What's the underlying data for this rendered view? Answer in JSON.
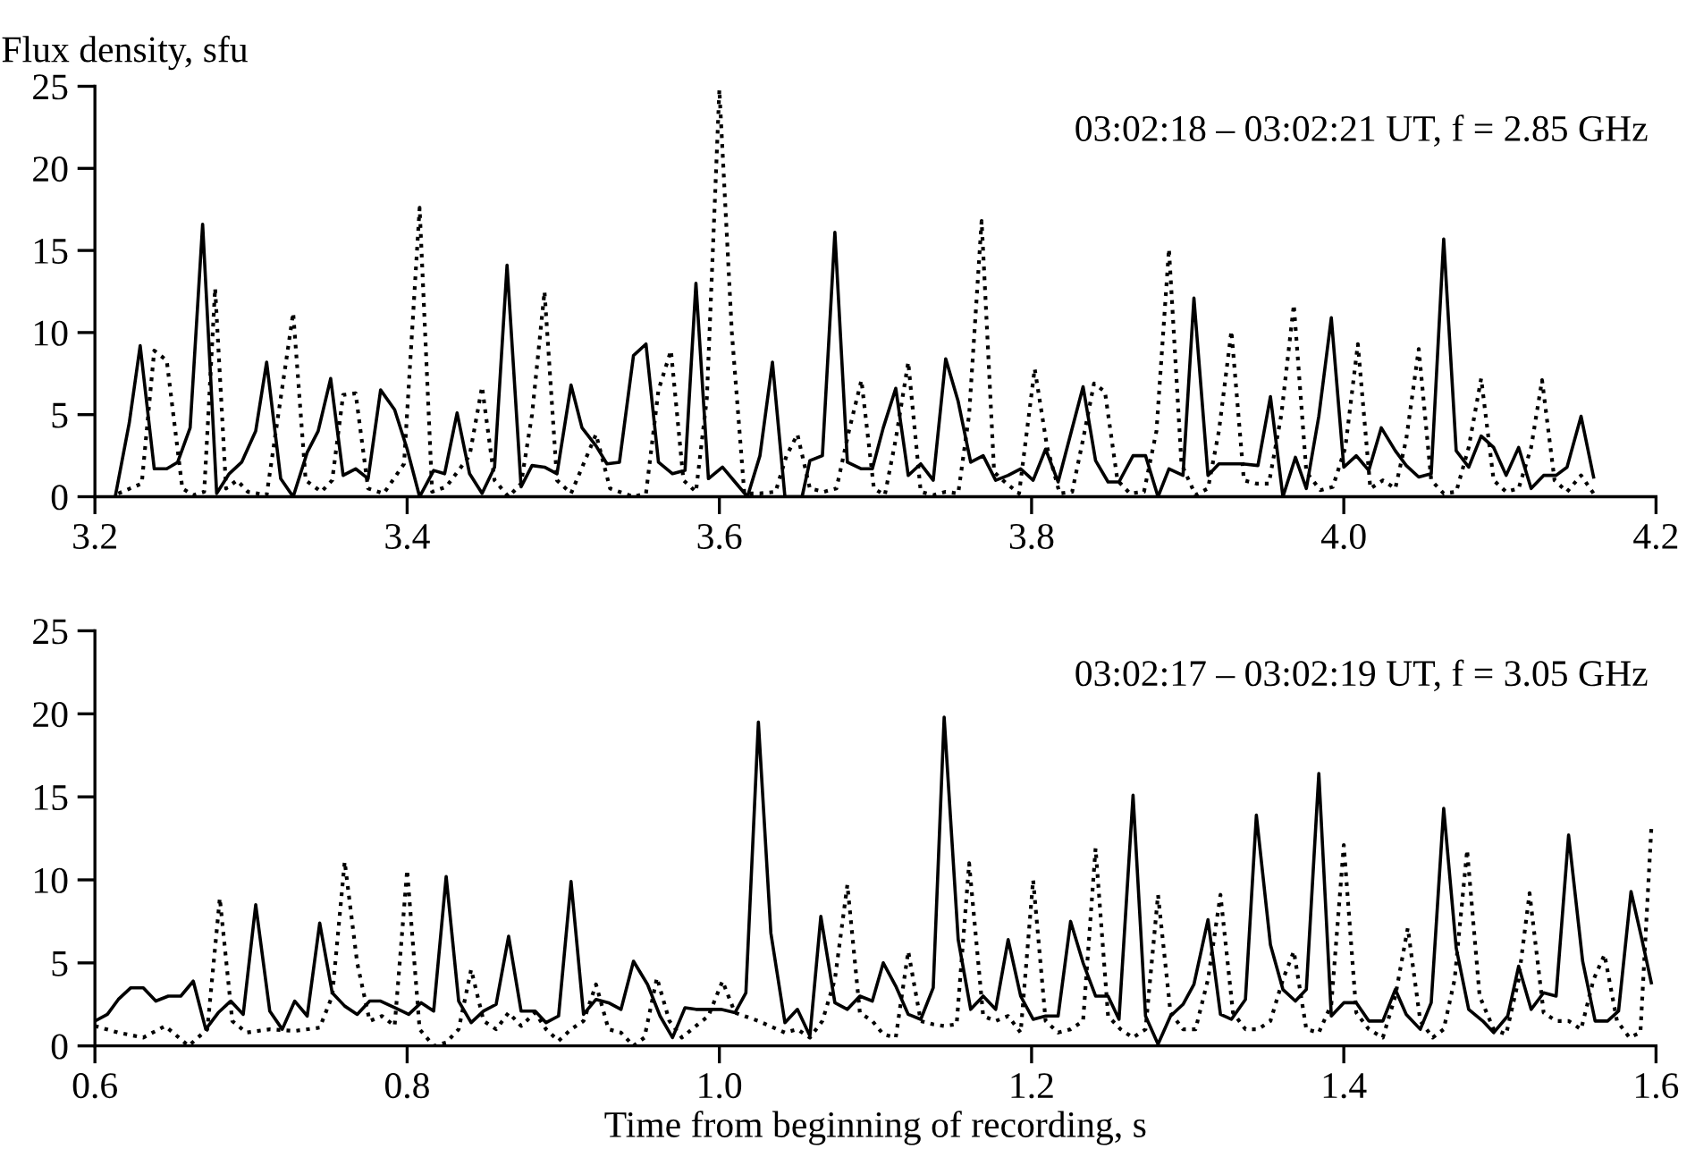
{
  "chart_data": [
    {
      "type": "line",
      "ylabel": "Flux density, sfu",
      "annotations": [
        "03:02:18 – 03:02:21 UT, f = 2.85 GHz"
      ],
      "xlim": [
        3.2,
        4.2
      ],
      "xticks": [
        3.2,
        3.4,
        3.6,
        3.8,
        {
          "value": 4,
          "label": "4.0"
        },
        4.2
      ],
      "ylim": [
        0,
        25
      ],
      "yticks": [
        0,
        5,
        10,
        15,
        20,
        25
      ],
      "grid": false,
      "series": [
        {
          "color": "#000000",
          "line_style": "solid",
          "x": [
            3.213,
            3.222,
            3.229,
            3.238,
            3.246,
            3.253,
            3.261,
            3.269,
            3.278,
            3.286,
            3.294,
            3.303,
            3.31,
            3.319,
            3.327,
            3.336,
            3.343,
            3.351,
            3.359,
            3.367,
            3.375,
            3.383,
            3.392,
            3.4,
            3.408,
            3.417,
            3.424,
            3.432,
            3.44,
            3.448,
            3.456,
            3.464,
            3.473,
            3.48,
            3.488,
            3.496,
            3.505,
            3.512,
            3.521,
            3.528,
            3.536,
            3.545,
            3.553,
            3.561,
            3.57,
            3.578,
            3.585,
            3.593,
            3.602,
            3.61,
            3.618,
            3.626,
            3.634,
            3.642,
            3.653,
            3.658,
            3.666,
            3.674,
            3.682,
            3.691,
            3.698,
            3.705,
            3.713,
            3.721,
            3.729,
            3.737,
            3.745,
            3.753,
            3.761,
            3.769,
            3.777,
            3.785,
            3.793,
            3.801,
            3.809,
            3.817,
            3.833,
            3.841,
            3.849,
            3.856,
            3.865,
            3.873,
            3.881,
            3.888,
            3.897,
            3.904,
            3.913,
            3.92,
            3.935,
            3.945,
            3.953,
            3.961,
            3.969,
            3.976,
            3.984,
            3.992,
            4.0,
            4.008,
            4.016,
            4.024,
            4.033,
            4.04,
            4.048,
            4.056,
            4.064,
            4.072,
            4.08,
            4.088,
            4.096,
            4.104,
            4.112,
            4.12,
            4.128,
            4.136,
            4.143,
            4.152,
            4.16
          ],
          "values": [
            0.0,
            4.5,
            9.2,
            1.7,
            1.7,
            2.1,
            4.2,
            16.6,
            0.2,
            1.4,
            2.1,
            4.0,
            8.2,
            1.1,
            0.0,
            2.7,
            4.0,
            7.2,
            1.3,
            1.7,
            1.1,
            6.5,
            5.3,
            2.9,
            0.0,
            1.6,
            1.4,
            5.1,
            1.4,
            0.2,
            1.8,
            14.1,
            0.6,
            1.9,
            1.8,
            1.4,
            6.8,
            4.2,
            3.1,
            2.0,
            2.1,
            8.6,
            9.3,
            2.1,
            1.4,
            1.6,
            13.0,
            1.1,
            1.8,
            0.9,
            0.0,
            2.5,
            8.2,
            0.0,
            0.0,
            2.2,
            2.5,
            16.1,
            2.1,
            1.7,
            1.7,
            4.2,
            6.6,
            1.3,
            2.0,
            1.0,
            8.4,
            5.8,
            2.1,
            2.5,
            1.0,
            1.3,
            1.7,
            1.0,
            2.9,
            0.9,
            6.7,
            2.2,
            0.9,
            0.9,
            2.5,
            2.5,
            0.0,
            1.7,
            1.3,
            12.1,
            1.3,
            2.0,
            2.0,
            1.9,
            6.1,
            0.0,
            2.4,
            0.5,
            4.9,
            10.9,
            1.8,
            2.5,
            1.6,
            4.2,
            2.8,
            1.9,
            1.2,
            1.4,
            15.7,
            2.8,
            1.8,
            3.7,
            3.0,
            1.3,
            3.0,
            0.5,
            1.3,
            1.3,
            1.8,
            4.9,
            1.2
          ]
        },
        {
          "color": "#000000",
          "line_style": "dotted",
          "x": [
            3.215,
            3.23,
            3.238,
            3.246,
            3.256,
            3.263,
            3.27,
            3.277,
            3.284,
            3.291,
            3.298,
            3.31,
            3.319,
            3.327,
            3.335,
            3.345,
            3.352,
            3.359,
            3.367,
            3.375,
            3.385,
            3.398,
            3.408,
            3.416,
            3.425,
            3.44,
            3.448,
            3.456,
            3.465,
            3.473,
            3.48,
            3.488,
            3.496,
            3.505,
            3.513,
            3.521,
            3.53,
            3.545,
            3.553,
            3.561,
            3.569,
            3.577,
            3.585,
            3.592,
            3.6,
            3.608,
            3.616,
            3.626,
            3.636,
            3.643,
            3.65,
            3.658,
            3.667,
            3.675,
            3.683,
            3.691,
            3.699,
            3.706,
            3.713,
            3.721,
            3.729,
            3.737,
            3.745,
            3.753,
            3.76,
            3.768,
            3.776,
            3.784,
            3.792,
            3.802,
            3.81,
            3.818,
            3.826,
            3.833,
            3.84,
            3.847,
            3.855,
            3.863,
            3.872,
            3.88,
            3.888,
            3.896,
            3.905,
            3.913,
            3.92,
            3.928,
            3.936,
            3.944,
            3.952,
            3.96,
            3.968,
            3.976,
            3.985,
            3.993,
            4.001,
            4.009,
            4.017,
            4.025,
            4.033,
            4.04,
            4.048,
            4.056,
            4.064,
            4.072,
            4.08,
            4.088,
            4.096,
            4.104,
            4.112,
            4.12,
            4.127,
            4.135,
            4.143,
            4.152,
            4.16
          ],
          "values": [
            0.2,
            0.8,
            8.9,
            8.3,
            0.5,
            0.1,
            0.3,
            12.7,
            0.5,
            1.0,
            0.3,
            0.1,
            6.0,
            11.2,
            1.0,
            0.3,
            1.0,
            6.2,
            6.3,
            0.5,
            0.2,
            2.0,
            17.6,
            0.3,
            0.6,
            2.5,
            6.7,
            1.0,
            0.0,
            0.8,
            5.0,
            12.5,
            1.0,
            0.2,
            2.0,
            3.8,
            0.5,
            0.0,
            0.2,
            6.5,
            8.9,
            1.0,
            0.3,
            6.0,
            24.8,
            10.0,
            0.2,
            0.2,
            0.3,
            2.5,
            3.8,
            0.5,
            0.3,
            0.5,
            4.0,
            7.1,
            0.5,
            0.1,
            3.5,
            8.2,
            0.3,
            0.1,
            0.3,
            0.2,
            5.0,
            16.8,
            1.5,
            0.8,
            0.2,
            7.8,
            3.0,
            0.2,
            0.3,
            3.5,
            6.9,
            6.4,
            1.0,
            0.2,
            0.3,
            4.0,
            15.1,
            2.0,
            0.1,
            0.5,
            4.0,
            10.1,
            1.0,
            0.8,
            0.8,
            5.0,
            11.7,
            1.5,
            0.4,
            0.6,
            3.0,
            9.3,
            0.5,
            1.0,
            0.5,
            3.5,
            9.0,
            1.0,
            0.2,
            0.3,
            3.0,
            7.2,
            1.0,
            0.3,
            0.5,
            3.0,
            7.1,
            1.0,
            0.3,
            1.3,
            0.2
          ]
        }
      ]
    },
    {
      "type": "line",
      "xlabel": "Time from beginning of recording, s",
      "annotations": [
        "03:02:17 – 03:02:19 UT, f = 3.05 GHz"
      ],
      "xlim": [
        0.6,
        1.6
      ],
      "xticks": [
        0.6,
        0.8,
        {
          "value": 1,
          "label": "1.0"
        },
        1.2,
        1.4,
        1.6
      ],
      "ylim": [
        0,
        25
      ],
      "yticks": [
        0,
        5,
        10,
        15,
        20,
        25
      ],
      "grid": false,
      "series": [
        {
          "color": "#000000",
          "line_style": "solid",
          "x": [
            0.6,
            0.608,
            0.615,
            0.623,
            0.631,
            0.639,
            0.647,
            0.655,
            0.663,
            0.671,
            0.679,
            0.687,
            0.695,
            0.703,
            0.712,
            0.72,
            0.728,
            0.736,
            0.744,
            0.752,
            0.76,
            0.768,
            0.776,
            0.783,
            0.792,
            0.801,
            0.809,
            0.817,
            0.825,
            0.833,
            0.841,
            0.849,
            0.857,
            0.865,
            0.873,
            0.882,
            0.889,
            0.897,
            0.905,
            0.913,
            0.921,
            0.929,
            0.937,
            0.945,
            0.954,
            0.962,
            0.97,
            0.978,
            0.985,
            1.001,
            1.01,
            1.017,
            1.025,
            1.033,
            1.042,
            1.05,
            1.058,
            1.065,
            1.074,
            1.082,
            1.09,
            1.098,
            1.105,
            1.113,
            1.121,
            1.129,
            1.137,
            1.144,
            1.153,
            1.161,
            1.169,
            1.177,
            1.185,
            1.193,
            1.201,
            1.209,
            1.217,
            1.225,
            1.233,
            1.241,
            1.249,
            1.256,
            1.265,
            1.273,
            1.281,
            1.289,
            1.297,
            1.304,
            1.313,
            1.321,
            1.328,
            1.337,
            1.344,
            1.353,
            1.361,
            1.369,
            1.376,
            1.384,
            1.392,
            1.4,
            1.408,
            1.416,
            1.425,
            1.433,
            1.44,
            1.449,
            1.456,
            1.464,
            1.472,
            1.48,
            1.489,
            1.496,
            1.505,
            1.512,
            1.52,
            1.528,
            1.536,
            1.544,
            1.553,
            1.561,
            1.569,
            1.576,
            1.584,
            1.591,
            1.597
          ],
          "values": [
            1.5,
            1.9,
            2.8,
            3.5,
            3.5,
            2.7,
            3.0,
            3.0,
            3.9,
            1.0,
            2.0,
            2.7,
            1.9,
            8.5,
            2.1,
            1.0,
            2.7,
            1.8,
            7.4,
            3.2,
            2.4,
            1.9,
            2.7,
            2.7,
            2.3,
            1.9,
            2.6,
            2.1,
            10.2,
            2.7,
            1.4,
            2.1,
            2.5,
            6.6,
            2.1,
            2.1,
            1.4,
            1.8,
            9.9,
            1.9,
            2.8,
            2.6,
            2.2,
            5.1,
            3.7,
            1.8,
            0.5,
            2.3,
            2.2,
            2.2,
            2.0,
            3.2,
            19.5,
            6.8,
            1.4,
            2.2,
            0.6,
            7.8,
            2.6,
            2.2,
            3.0,
            2.7,
            5.0,
            3.6,
            1.9,
            1.6,
            3.5,
            19.8,
            6.4,
            2.2,
            3.0,
            2.2,
            6.4,
            3.0,
            1.6,
            1.8,
            1.8,
            7.5,
            5.0,
            3.0,
            3.0,
            1.6,
            15.1,
            1.8,
            0.1,
            1.8,
            2.5,
            3.7,
            7.6,
            1.9,
            1.6,
            2.8,
            13.9,
            6.1,
            3.4,
            2.7,
            3.4,
            16.4,
            1.8,
            2.6,
            2.6,
            1.5,
            1.5,
            3.4,
            1.9,
            1.0,
            2.6,
            14.3,
            5.9,
            2.2,
            1.5,
            0.8,
            1.8,
            4.8,
            2.2,
            3.2,
            3.0,
            12.7,
            5.1,
            1.5,
            1.5,
            2.1,
            9.3,
            6.4,
            3.8
          ]
        },
        {
          "color": "#000000",
          "line_style": "dotted",
          "x": [
            0.6,
            0.615,
            0.631,
            0.645,
            0.66,
            0.672,
            0.68,
            0.688,
            0.697,
            0.712,
            0.728,
            0.744,
            0.752,
            0.76,
            0.768,
            0.776,
            0.784,
            0.792,
            0.8,
            0.808,
            0.817,
            0.825,
            0.833,
            0.841,
            0.849,
            0.857,
            0.865,
            0.873,
            0.882,
            0.889,
            0.897,
            0.905,
            0.913,
            0.921,
            0.929,
            0.937,
            0.945,
            0.952,
            0.96,
            0.968,
            0.976,
            0.985,
            0.993,
            1.002,
            1.01,
            1.025,
            1.042,
            1.05,
            1.058,
            1.066,
            1.074,
            1.082,
            1.09,
            1.098,
            1.105,
            1.113,
            1.121,
            1.129,
            1.137,
            1.144,
            1.152,
            1.16,
            1.169,
            1.177,
            1.185,
            1.193,
            1.201,
            1.209,
            1.217,
            1.225,
            1.233,
            1.241,
            1.249,
            1.257,
            1.265,
            1.273,
            1.281,
            1.289,
            1.297,
            1.305,
            1.313,
            1.321,
            1.329,
            1.337,
            1.345,
            1.353,
            1.361,
            1.368,
            1.376,
            1.384,
            1.392,
            1.4,
            1.408,
            1.416,
            1.425,
            1.433,
            1.441,
            1.449,
            1.457,
            1.464,
            1.471,
            1.479,
            1.487,
            1.496,
            1.504,
            1.512,
            1.519,
            1.528,
            1.536,
            1.544,
            1.552,
            1.56,
            1.567,
            1.575,
            1.583,
            1.59,
            1.597
          ],
          "values": [
            1.2,
            0.8,
            0.5,
            1.2,
            0.0,
            1.0,
            8.9,
            1.5,
            0.8,
            1.0,
            0.9,
            1.1,
            3.0,
            11.1,
            5.0,
            1.5,
            1.8,
            1.2,
            10.6,
            1.0,
            0.0,
            0.2,
            1.0,
            4.6,
            1.5,
            1.0,
            2.0,
            1.2,
            2.0,
            1.0,
            0.3,
            1.0,
            1.5,
            3.7,
            1.0,
            0.8,
            0.0,
            0.5,
            4.1,
            1.5,
            0.5,
            1.2,
            1.8,
            3.9,
            2.0,
            1.5,
            0.8,
            1.0,
            0.5,
            1.5,
            4.0,
            9.7,
            2.0,
            1.5,
            0.7,
            0.5,
            5.7,
            1.5,
            1.3,
            1.2,
            1.3,
            11.0,
            1.8,
            1.5,
            1.8,
            0.8,
            10.0,
            1.5,
            0.8,
            1.0,
            1.5,
            11.9,
            1.8,
            1.0,
            0.5,
            1.0,
            9.1,
            2.0,
            1.0,
            1.0,
            4.0,
            9.1,
            2.0,
            1.0,
            1.0,
            1.5,
            4.0,
            5.7,
            1.0,
            0.8,
            2.5,
            12.1,
            2.0,
            1.0,
            0.5,
            3.0,
            7.1,
            1.5,
            0.5,
            1.0,
            4.0,
            11.8,
            3.0,
            1.0,
            0.7,
            4.0,
            9.2,
            2.0,
            1.5,
            1.5,
            1.0,
            4.0,
            5.5,
            1.5,
            0.5,
            0.8,
            13.1
          ]
        }
      ]
    }
  ]
}
